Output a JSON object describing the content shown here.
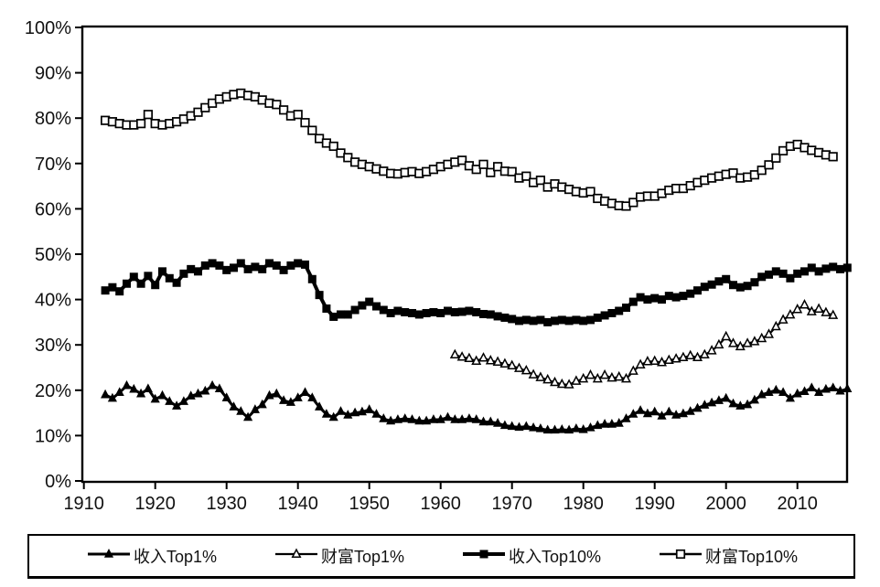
{
  "chart_data": {
    "type": "line",
    "title": "",
    "grid": false,
    "legend_position": "bottom",
    "line_color": "#000000",
    "background": "#ffffff",
    "x_axis": {
      "ticks": [
        1910,
        1920,
        1930,
        1940,
        1950,
        1960,
        1970,
        1980,
        1990,
        2000,
        2010
      ],
      "range": [
        1909.8,
        2017
      ]
    },
    "y_axis": {
      "ticks": [
        "0%",
        "10%",
        "20%",
        "30%",
        "40%",
        "50%",
        "60%",
        "70%",
        "80%",
        "90%",
        "100%"
      ],
      "min": 0,
      "max": 100
    },
    "series": [
      {
        "id": "income-top1",
        "name": "收入Top1%",
        "marker": "triangle-filled",
        "start_year": 1913,
        "values": [
          19.0,
          18.2,
          19.5,
          21.0,
          20.2,
          19.2,
          20.3,
          18.0,
          18.8,
          17.5,
          16.5,
          17.5,
          18.7,
          19.2,
          19.8,
          21.0,
          20.3,
          18.3,
          16.3,
          15.3,
          14.0,
          15.7,
          16.8,
          18.8,
          19.2,
          17.7,
          17.3,
          18.3,
          19.5,
          18.3,
          16.3,
          14.7,
          14.0,
          15.3,
          14.5,
          15.0,
          15.2,
          15.7,
          14.7,
          13.7,
          13.2,
          13.5,
          13.7,
          13.5,
          13.2,
          13.2,
          13.5,
          13.5,
          14.0,
          13.5,
          13.5,
          13.7,
          13.5,
          13.0,
          13.0,
          12.7,
          12.2,
          12.0,
          11.8,
          12.0,
          11.7,
          11.5,
          11.2,
          11.2,
          11.3,
          11.2,
          11.5,
          11.3,
          11.7,
          12.2,
          12.5,
          12.5,
          12.7,
          13.7,
          14.7,
          15.5,
          14.8,
          15.2,
          14.3,
          15.2,
          14.5,
          14.8,
          15.3,
          16.0,
          16.7,
          17.2,
          17.7,
          18.2,
          17.0,
          16.5,
          16.8,
          17.8,
          19.0,
          19.5,
          20.0,
          19.5,
          18.2,
          19.2,
          19.7,
          20.5,
          19.5,
          20.2,
          20.5,
          19.8,
          20.3
        ]
      },
      {
        "id": "wealth-top1",
        "name": "财富Top1%",
        "marker": "triangle-open",
        "start_year": 1962,
        "values": [
          27.8,
          27.3,
          27.0,
          26.4,
          27.1,
          26.5,
          26.2,
          25.8,
          25.4,
          24.8,
          24.3,
          23.4,
          22.8,
          22.3,
          21.7,
          21.3,
          21.2,
          22.0,
          22.5,
          23.3,
          22.5,
          23.3,
          22.7,
          22.9,
          22.5,
          24.2,
          25.6,
          26.3,
          26.4,
          26.1,
          26.6,
          26.9,
          27.2,
          27.6,
          27.2,
          27.8,
          28.7,
          30.0,
          31.8,
          30.3,
          29.6,
          30.3,
          30.7,
          31.4,
          32.3,
          34.0,
          35.5,
          36.6,
          37.8,
          38.8,
          37.3,
          37.9,
          37.1,
          36.5
        ]
      },
      {
        "id": "income-top10",
        "name": "收入Top10%",
        "marker": "square-filled",
        "start_year": 1913,
        "values": [
          42.0,
          42.7,
          41.8,
          43.5,
          45.0,
          43.5,
          45.2,
          43.2,
          46.2,
          44.7,
          43.7,
          45.7,
          46.7,
          46.2,
          47.5,
          48.0,
          47.5,
          46.5,
          47.0,
          48.0,
          46.7,
          47.2,
          46.7,
          48.0,
          47.5,
          46.5,
          47.5,
          48.0,
          47.7,
          44.5,
          41.0,
          38.0,
          36.2,
          36.7,
          36.7,
          37.7,
          38.7,
          39.5,
          38.5,
          37.7,
          37.0,
          37.5,
          37.2,
          37.0,
          36.7,
          37.0,
          37.2,
          37.0,
          37.5,
          37.2,
          37.3,
          37.5,
          37.2,
          36.8,
          36.7,
          36.3,
          36.0,
          35.7,
          35.3,
          35.5,
          35.3,
          35.5,
          35.0,
          35.3,
          35.5,
          35.3,
          35.5,
          35.3,
          35.5,
          36.0,
          36.5,
          37.0,
          37.5,
          38.2,
          39.5,
          40.5,
          40.0,
          40.3,
          40.0,
          40.8,
          40.5,
          40.8,
          41.3,
          42.0,
          42.8,
          43.3,
          44.0,
          44.5,
          43.2,
          42.7,
          43.0,
          43.8,
          45.0,
          45.5,
          46.2,
          45.7,
          44.7,
          45.7,
          46.2,
          47.0,
          46.2,
          46.8,
          47.2,
          46.7,
          47.0
        ]
      },
      {
        "id": "wealth-top10",
        "name": "财富Top10%",
        "marker": "square-open",
        "start_year": 1913,
        "values": [
          79.5,
          79.2,
          78.8,
          78.5,
          78.5,
          78.8,
          80.8,
          78.8,
          78.5,
          78.8,
          79.2,
          79.8,
          80.5,
          81.3,
          82.3,
          83.3,
          84.2,
          84.7,
          85.2,
          85.5,
          85.0,
          84.7,
          84.0,
          83.3,
          83.0,
          81.8,
          80.5,
          80.8,
          79.0,
          77.3,
          75.5,
          74.5,
          73.8,
          72.3,
          71.3,
          70.3,
          69.8,
          69.3,
          68.8,
          68.3,
          67.8,
          67.7,
          68.0,
          68.2,
          67.8,
          68.2,
          68.7,
          69.3,
          69.8,
          70.3,
          70.7,
          69.5,
          68.7,
          69.8,
          68.0,
          69.3,
          68.3,
          68.2,
          66.8,
          67.2,
          65.8,
          66.3,
          64.8,
          65.5,
          64.8,
          64.3,
          63.8,
          63.5,
          63.8,
          62.3,
          61.7,
          61.2,
          60.7,
          60.6,
          61.4,
          62.6,
          62.8,
          62.8,
          63.4,
          64.1,
          64.5,
          64.5,
          65.1,
          65.8,
          66.3,
          66.8,
          67.2,
          67.6,
          67.9,
          66.8,
          67.0,
          67.5,
          68.5,
          69.7,
          71.2,
          72.8,
          73.8,
          74.2,
          73.5,
          72.9,
          72.4,
          71.9,
          71.5
        ]
      }
    ]
  },
  "legend": {
    "items": [
      {
        "label": "收入Top1%"
      },
      {
        "label": "财富Top1%"
      },
      {
        "label": "收入Top10%"
      },
      {
        "label": "财富Top10%"
      }
    ]
  }
}
